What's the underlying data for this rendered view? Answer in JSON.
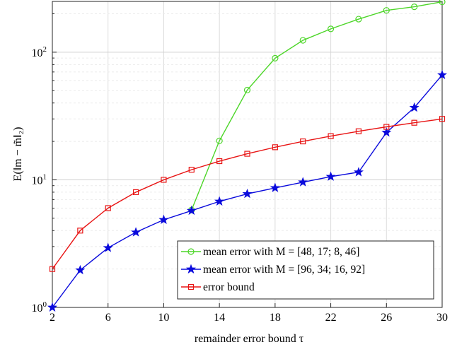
{
  "chart_data": {
    "type": "line",
    "xlabel": "remainder error bound τ",
    "ylabel": "E(‖m − m̃‖₂)",
    "x_ticks": [
      "2",
      "6",
      "10",
      "14",
      "18",
      "22",
      "26",
      "30"
    ],
    "y_ticks": [
      {
        "value": 1,
        "base": "10",
        "exp": "0"
      },
      {
        "value": 10,
        "base": "10",
        "exp": "1"
      },
      {
        "value": 100,
        "base": "10",
        "exp": "2"
      }
    ],
    "xlim": [
      2,
      30
    ],
    "ylim": [
      1,
      250
    ],
    "yscale": "log",
    "grid": true,
    "legend_position": "bottom-right",
    "series": [
      {
        "name": "mean error with M = [48, 17; 8, 46]",
        "color": "#4dd629",
        "marker": "circle",
        "x": [
          12,
          14,
          16,
          18,
          20,
          22,
          24,
          26,
          28,
          30
        ],
        "y": [
          5.8,
          20.2,
          50.5,
          89.7,
          123.9,
          152.3,
          181.6,
          212.7,
          226.9,
          248.2
        ]
      },
      {
        "name": "mean error with M = [96, 34; 16, 92]",
        "color": "#0a0adc",
        "marker": "star",
        "x": [
          2,
          4,
          6,
          8,
          10,
          12,
          14,
          16,
          18,
          20,
          22,
          24,
          26,
          28,
          30
        ],
        "y": [
          1.0,
          1.96,
          2.93,
          3.88,
          4.86,
          5.73,
          6.77,
          7.76,
          8.64,
          9.58,
          10.59,
          11.48,
          23.5,
          36.8,
          66.3
        ]
      },
      {
        "name": "error bound",
        "color": "#e81414",
        "marker": "square",
        "x": [
          2,
          4,
          6,
          8,
          10,
          12,
          14,
          16,
          18,
          20,
          22,
          24,
          26,
          28,
          30
        ],
        "y": [
          2,
          4,
          6,
          8,
          10,
          12,
          14,
          16,
          18,
          20,
          22,
          24,
          26,
          28,
          30
        ]
      }
    ]
  }
}
